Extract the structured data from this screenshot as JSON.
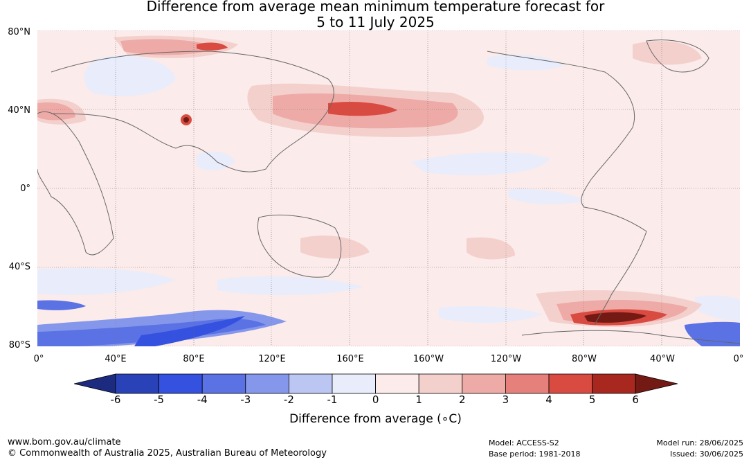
{
  "title": {
    "line1": "Difference from average mean minimum temperature forecast for",
    "line2": "5 to 11 July 2025"
  },
  "map": {
    "lat_labels": [
      "80°N",
      "40°N",
      "0°",
      "40°S",
      "80°S"
    ],
    "lon_labels": [
      "0°",
      "40°E",
      "80°E",
      "120°E",
      "160°E",
      "160°W",
      "120°W",
      "80°W",
      "40°W",
      "0°"
    ],
    "projection": "equirectangular, 0° to 360° longitude, 80°S to 80°N"
  },
  "colorbar": {
    "ticks": [
      "-6",
      "-5",
      "-4",
      "-3",
      "-2",
      "-1",
      "0",
      "1",
      "2",
      "3",
      "4",
      "5",
      "6"
    ],
    "colors": [
      "#1c2a80",
      "#2a42b8",
      "#3551e0",
      "#5a72e4",
      "#8597ea",
      "#bcc6f2",
      "#e8ecfb",
      "#fbebea",
      "#f4d0cd",
      "#eeaaa6",
      "#e6807a",
      "#d94a41",
      "#a82820",
      "#741a14"
    ],
    "label": "Difference from average (∘C)"
  },
  "footer": {
    "website": "www.bom.gov.au/climate",
    "copyright": "© Commonwealth of Australia 2025, Australian Bureau of Meteorology",
    "model": "Model: ACCESS-S2",
    "base_period": "Base period: 1981-2018",
    "model_run": "Model run: 28/06/2025",
    "issued": "Issued: 30/06/2025"
  }
}
